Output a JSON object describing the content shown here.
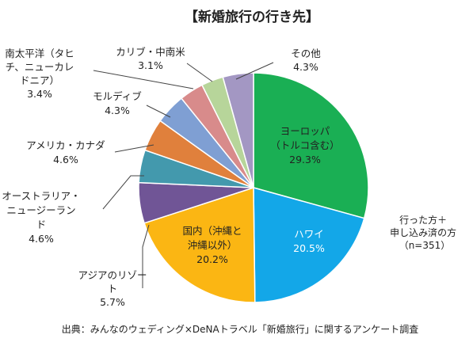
{
  "chart_data": {
    "type": "pie",
    "title": "【新婚旅行の行き先】",
    "slices": [
      {
        "lines": [
          "ヨーロッパ",
          "（トルコ含む）"
        ],
        "value": 29.3,
        "value_text": "29.3%",
        "color": "#1aaf54"
      },
      {
        "lines": [
          "ハワイ"
        ],
        "value": 20.5,
        "value_text": "20.5%",
        "color": "#13a7e8"
      },
      {
        "lines": [
          "国内（沖縄と",
          "沖縄以外）"
        ],
        "value": 20.2,
        "value_text": "20.2%",
        "color": "#fbb613"
      },
      {
        "lines": [
          "アジアのリゾー",
          "ト"
        ],
        "value": 5.7,
        "value_text": "5.7%",
        "color": "#705596"
      },
      {
        "lines": [
          "オーストラリア・",
          "ニュージーラン",
          "ド"
        ],
        "value": 4.6,
        "value_text": "4.6%",
        "color": "#4399ad"
      },
      {
        "lines": [
          "アメリカ・カナダ"
        ],
        "value": 4.6,
        "value_text": "4.6%",
        "color": "#e0803c"
      },
      {
        "lines": [
          "モルディブ"
        ],
        "value": 4.3,
        "value_text": "4.3%",
        "color": "#7f9fd3"
      },
      {
        "lines": [
          "南太平洋（タヒ",
          "チ、ニューカレ",
          "ドニア）"
        ],
        "value": 3.4,
        "value_text": "3.4%",
        "color": "#d88b8b"
      },
      {
        "lines": [
          "カリブ・中南米"
        ],
        "value": 3.1,
        "value_text": "3.1%",
        "color": "#b7d59a"
      },
      {
        "lines": [
          "その他"
        ],
        "value": 4.3,
        "value_text": "4.3%",
        "color": "#a397c3"
      }
    ],
    "note_lines": [
      "行った方＋",
      "申し込み済の方",
      "（n=351）"
    ],
    "source": "出典：みんなのウェディング×DeNAトラベル「新婚旅行」に関するアンケート調査"
  }
}
